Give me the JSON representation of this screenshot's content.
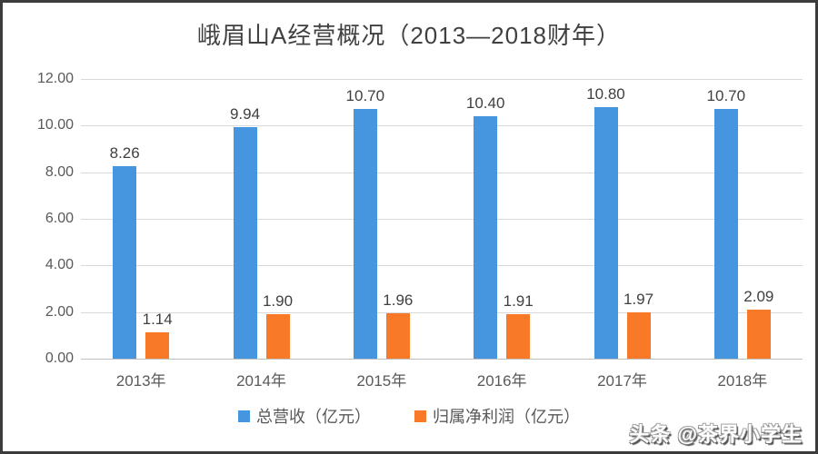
{
  "frame": {
    "background": "#ffffff",
    "border_color": "#3c3c3c"
  },
  "title": "峨眉山A经营概况（2013—2018财年）",
  "watermark": "头条 @茶界小学生",
  "legend": [
    {
      "label": "总营收（亿元）",
      "color": "#4596de"
    },
    {
      "label": "归属净利润（亿元）",
      "color": "#f87a28"
    }
  ],
  "chart_data": {
    "type": "bar",
    "title": "峨眉山A经营概况（2013—2018财年）",
    "categories": [
      "2013年",
      "2014年",
      "2015年",
      "2016年",
      "2017年",
      "2018年"
    ],
    "series": [
      {
        "name": "总营收（亿元）",
        "color": "#4596de",
        "values": [
          8.26,
          9.94,
          10.7,
          10.4,
          10.8,
          10.7
        ],
        "labels": [
          "8.26",
          "9.94",
          "10.70",
          "10.40",
          "10.80",
          "10.70"
        ]
      },
      {
        "name": "归属净利润（亿元）",
        "color": "#f87a28",
        "values": [
          1.14,
          1.9,
          1.96,
          1.91,
          1.97,
          2.09
        ],
        "labels": [
          "1.14",
          "1.90",
          "1.96",
          "1.91",
          "1.97",
          "2.09"
        ]
      }
    ],
    "xlabel": "",
    "ylabel": "",
    "ylim": [
      0,
      12
    ],
    "ytick_step": 2,
    "ytick_labels": [
      "0.00",
      "2.00",
      "4.00",
      "6.00",
      "8.00",
      "10.00",
      "12.00"
    ],
    "grid": true,
    "legend_position": "bottom"
  }
}
